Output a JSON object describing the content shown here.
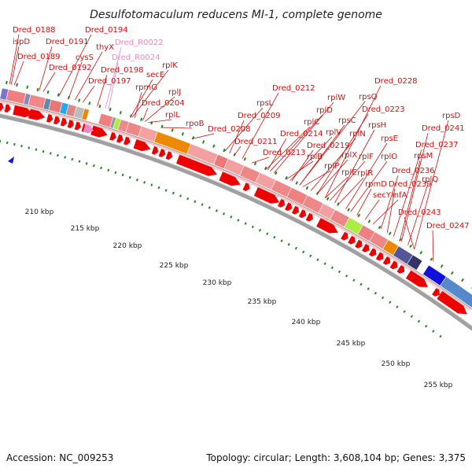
{
  "title": "Desulfotomaculum reducens MI-1, complete genome",
  "accession": "Accession: NC_009253",
  "summary": "Topology: circular; Length: 3,608,104 bp; Genes: 3,375",
  "colors": {
    "gene_label": "#d01010",
    "rna_label": "#e888c8",
    "arrow": "#ee0000",
    "backbone": "#a0a0a0",
    "ticks": "#228822"
  },
  "gene_labels": [
    {
      "text": "Dred_0188",
      "type": "gene"
    },
    {
      "text": "ispD",
      "type": "gene"
    },
    {
      "text": "Dred_0189",
      "type": "gene"
    },
    {
      "text": "Dred_0191",
      "type": "gene"
    },
    {
      "text": "Dred_0192",
      "type": "gene"
    },
    {
      "text": "Dred_0194",
      "type": "gene"
    },
    {
      "text": "cysS",
      "type": "gene"
    },
    {
      "text": "thyX",
      "type": "gene"
    },
    {
      "text": "Dred_R0022",
      "type": "rna"
    },
    {
      "text": "Dred_R0024",
      "type": "rna"
    },
    {
      "text": "Dred_0198",
      "type": "gene"
    },
    {
      "text": "Dred_0197",
      "type": "gene"
    },
    {
      "text": "rplK",
      "type": "gene"
    },
    {
      "text": "secE",
      "type": "gene"
    },
    {
      "text": "rpmG",
      "type": "gene"
    },
    {
      "text": "rplJ",
      "type": "gene"
    },
    {
      "text": "Dred_0204",
      "type": "gene"
    },
    {
      "text": "rplL",
      "type": "gene"
    },
    {
      "text": "rpoB",
      "type": "gene"
    },
    {
      "text": "Dred_0208",
      "type": "gene"
    },
    {
      "text": "rpsL",
      "type": "gene"
    },
    {
      "text": "Dred_0209",
      "type": "gene"
    },
    {
      "text": "Dred_0211",
      "type": "gene"
    },
    {
      "text": "Dred_0212",
      "type": "gene"
    },
    {
      "text": "Dred_0213",
      "type": "gene"
    },
    {
      "text": "rplC",
      "type": "gene"
    },
    {
      "text": "rplD",
      "type": "gene"
    },
    {
      "text": "Dred_0214",
      "type": "gene"
    },
    {
      "text": "rplW",
      "type": "gene"
    },
    {
      "text": "rplB",
      "type": "gene"
    },
    {
      "text": "rplV",
      "type": "gene"
    },
    {
      "text": "Dred_0219",
      "type": "gene"
    },
    {
      "text": "rpsC",
      "type": "gene"
    },
    {
      "text": "rplP",
      "type": "gene"
    },
    {
      "text": "rpsQ",
      "type": "gene"
    },
    {
      "text": "rplN",
      "type": "gene"
    },
    {
      "text": "rplX",
      "type": "gene"
    },
    {
      "text": "Dred_0223",
      "type": "gene"
    },
    {
      "text": "rplE",
      "type": "gene"
    },
    {
      "text": "rpsH",
      "type": "gene"
    },
    {
      "text": "rplF",
      "type": "gene"
    },
    {
      "text": "rplR",
      "type": "gene"
    },
    {
      "text": "Dred_0228",
      "type": "gene"
    },
    {
      "text": "rpsE",
      "type": "gene"
    },
    {
      "text": "rplO",
      "type": "gene"
    },
    {
      "text": "rpmD",
      "type": "gene"
    },
    {
      "text": "secY",
      "type": "gene"
    },
    {
      "text": "infA",
      "type": "gene"
    },
    {
      "text": "Dred_0236",
      "type": "gene"
    },
    {
      "text": "Dred_0237",
      "type": "gene"
    },
    {
      "text": "Dred_0239",
      "type": "gene"
    },
    {
      "text": "rpsM",
      "type": "gene"
    },
    {
      "text": "Dred_0241",
      "type": "gene"
    },
    {
      "text": "rplQ",
      "type": "gene"
    },
    {
      "text": "Dred_0243",
      "type": "gene"
    },
    {
      "text": "rpsD",
      "type": "gene"
    },
    {
      "text": "Dred_0247",
      "type": "gene"
    }
  ],
  "scale_labels": [
    "210 kbp",
    "215 kbp",
    "220 kbp",
    "225 kbp",
    "230 kbp",
    "235 kbp",
    "240 kbp",
    "245 kbp",
    "250 kbp",
    "255 kbp"
  ]
}
